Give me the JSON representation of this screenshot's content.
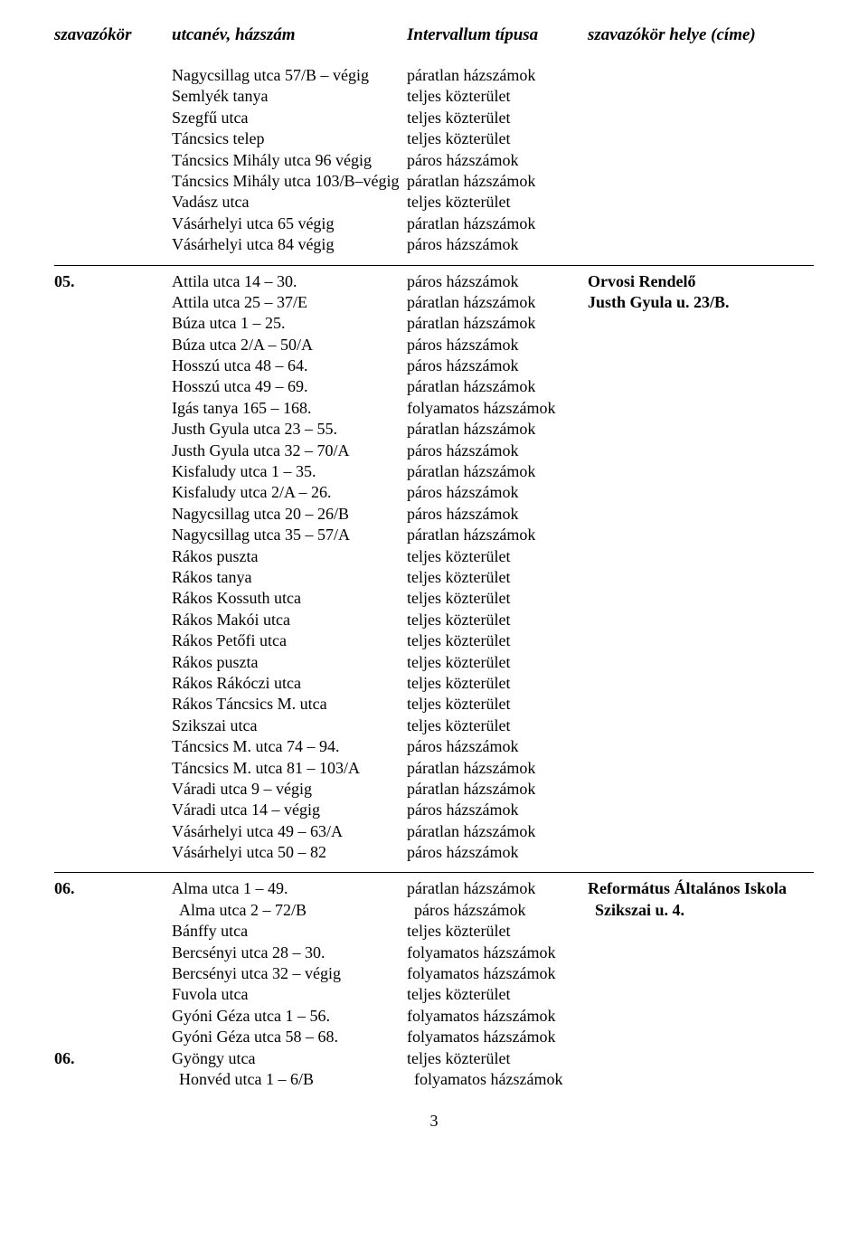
{
  "header": {
    "col1": "szavazókör",
    "col2": "utcanév, házszám",
    "col3": "Intervallum típusa",
    "col4": "szavazókör helye (címe)"
  },
  "blocks": [
    {
      "num": "",
      "location_parts": [],
      "rows": [
        {
          "addr": "Nagycsillag utca 57/B – végig",
          "int": "páratlan házszámok"
        },
        {
          "addr": "Semlyék tanya",
          "int": "teljes közterület"
        },
        {
          "addr": "Szegfű utca",
          "int": "teljes közterület"
        },
        {
          "addr": "Táncsics telep",
          "int": "teljes közterület"
        },
        {
          "addr": "Táncsics Mihály utca 96 végig",
          "int": "páros házszámok"
        },
        {
          "addr": "Táncsics Mihály utca 103/B–végig",
          "int": "páratlan házszámok"
        },
        {
          "addr": "Vadász utca",
          "int": "teljes közterület"
        },
        {
          "addr": "Vásárhelyi utca 65 végig",
          "int": "páratlan házszámok"
        },
        {
          "addr": "Vásárhelyi utca 84 végig",
          "int": "páros házszámok"
        }
      ]
    },
    {
      "num": "05.",
      "location_parts": [
        "Orvosi Rendelő",
        "Justh Gyula u. 23/B."
      ],
      "rows": [
        {
          "addr": "Attila utca 14 – 30.",
          "int": "páros házszámok"
        },
        {
          "addr": "Attila utca 25 – 37/E",
          "int": "páratlan házszámok"
        },
        {
          "addr": "Búza utca 1 – 25.",
          "int": "páratlan házszámok"
        },
        {
          "addr": "Búza utca 2/A – 50/A",
          "int": "páros házszámok"
        },
        {
          "addr": "Hosszú utca 48 – 64.",
          "int": "páros házszámok"
        },
        {
          "addr": "Hosszú utca 49 – 69.",
          "int": "páratlan házszámok"
        },
        {
          "addr": "Igás tanya 165 – 168.",
          "int": "folyamatos házszámok"
        },
        {
          "addr": "Justh Gyula utca 23 – 55.",
          "int": "páratlan házszámok"
        },
        {
          "addr": "Justh Gyula utca 32 – 70/A",
          "int": "páros házszámok"
        },
        {
          "addr": "Kisfaludy utca 1 – 35.",
          "int": "páratlan házszámok"
        },
        {
          "addr": "Kisfaludy utca 2/A – 26.",
          "int": "páros házszámok"
        },
        {
          "addr": "Nagycsillag utca 20 – 26/B",
          "int": "páros házszámok"
        },
        {
          "addr": "Nagycsillag utca 35 – 57/A",
          "int": "páratlan házszámok"
        },
        {
          "addr": "Rákos puszta",
          "int": "teljes közterület"
        },
        {
          "addr": "Rákos tanya",
          "int": "teljes közterület"
        },
        {
          "addr": "Rákos Kossuth utca",
          "int": "teljes közterület"
        },
        {
          "addr": "Rákos Makói utca",
          "int": "teljes közterület"
        },
        {
          "addr": "Rákos Petőfi utca",
          "int": "teljes közterület"
        },
        {
          "addr": "Rákos puszta",
          "int": "teljes közterület"
        },
        {
          "addr": "Rákos Rákóczi utca",
          "int": "teljes közterület"
        },
        {
          "addr": "Rákos Táncsics M. utca",
          "int": "teljes közterület"
        },
        {
          "addr": "Szikszai utca",
          "int": "teljes közterület"
        },
        {
          "addr": "Táncsics M. utca 74 – 94.",
          "int": "páros házszámok"
        },
        {
          "addr": "Táncsics M. utca 81 – 103/A",
          "int": "páratlan házszámok"
        },
        {
          "addr": "Váradi utca 9 – végig",
          "int": "páratlan házszámok"
        },
        {
          "addr": "Váradi utca 14 – végig",
          "int": "páros házszámok"
        },
        {
          "addr": "Vásárhelyi utca 49 – 63/A",
          "int": "páratlan házszámok"
        },
        {
          "addr": "Vásárhelyi utca 50 – 82",
          "int": "páros házszámok"
        }
      ]
    },
    {
      "num": "06.",
      "location_parts": [
        "Református Általános Iskola",
        "Szikszai u. 4."
      ],
      "secondary_num_index": 8,
      "secondary_num": "06.",
      "indent_from_index": 1,
      "rows": [
        {
          "addr": "Alma utca 1 – 49.",
          "int": "páratlan házszámok"
        },
        {
          "addr": "Alma utca 2 – 72/B",
          "int": "páros házszámok"
        },
        {
          "addr": "Bánffy utca",
          "int": "teljes közterület"
        },
        {
          "addr": "Bercsényi utca 28 – 30.",
          "int": "folyamatos házszámok"
        },
        {
          "addr": "Bercsényi utca 32 – végig",
          "int": "folyamatos házszámok"
        },
        {
          "addr": "Fuvola utca",
          "int": "teljes közterület"
        },
        {
          "addr": "Gyóni Géza utca 1 – 56.",
          "int": "folyamatos házszámok"
        },
        {
          "addr": "Gyóni Géza utca 58 – 68.",
          "int": "folyamatos házszámok"
        },
        {
          "addr": "Gyöngy utca",
          "int": "teljes közterület"
        },
        {
          "addr": "Honvéd utca 1 – 6/B",
          "int": "folyamatos házszámok"
        }
      ]
    }
  ],
  "page_number": "3"
}
